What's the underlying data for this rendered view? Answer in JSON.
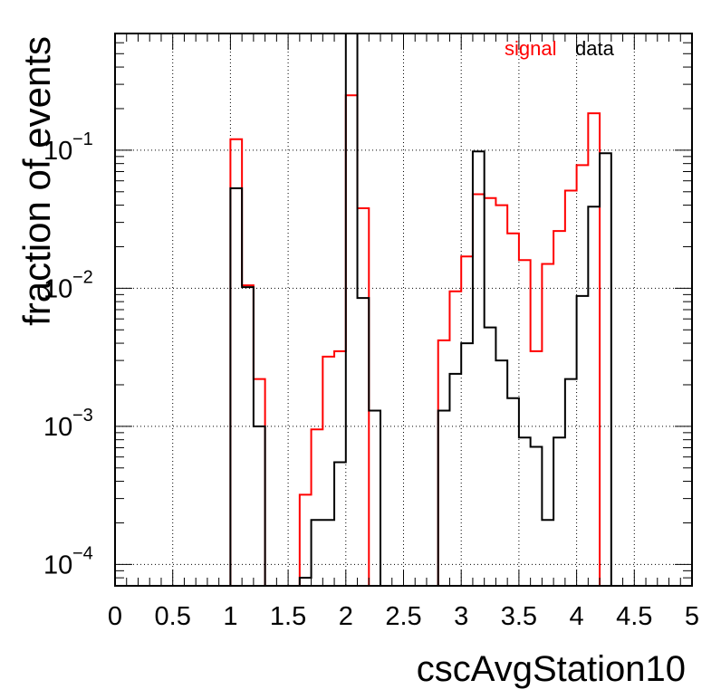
{
  "chart_data": {
    "type": "histogram",
    "xlabel": "cscAvgStation10",
    "ylabel": "fraction of events",
    "xlim": [
      0,
      5
    ],
    "ylim": [
      7e-05,
      0.7
    ],
    "yscale": "log",
    "grid": true,
    "bin_width": 0.1,
    "x_ticks": [
      0,
      0.5,
      1,
      1.5,
      2,
      2.5,
      3,
      3.5,
      4,
      4.5,
      5
    ],
    "x_tick_labels": [
      "0",
      "0.5",
      "1",
      "1.5",
      "2",
      "2.5",
      "3",
      "3.5",
      "4",
      "4.5",
      "5"
    ],
    "y_ticks": [
      0.0001,
      0.001,
      0.01,
      0.1
    ],
    "y_tick_labels": [
      {
        "base": "10",
        "exp": "−4"
      },
      {
        "base": "10",
        "exp": "−3"
      },
      {
        "base": "10",
        "exp": "−2"
      },
      {
        "base": "10",
        "exp": "−1"
      }
    ],
    "legend": {
      "placement": "top-right",
      "entries": [
        "signal",
        "data"
      ]
    },
    "series": [
      {
        "name": "signal",
        "color": "#ff0000",
        "values": [
          0,
          0,
          0,
          0,
          0,
          0,
          0,
          0,
          0,
          0,
          0.12,
          0.0105,
          0.0022,
          0,
          0,
          0,
          0.00032,
          0.00095,
          0.0032,
          0.0035,
          0.25,
          0.038,
          0,
          0,
          0,
          0,
          0,
          0,
          0.0042,
          0.0095,
          0.017,
          0.048,
          0.045,
          0.04,
          0.025,
          0.016,
          0.0035,
          0.015,
          0.026,
          0.051,
          0.078,
          0.185,
          0,
          0,
          0,
          0,
          0,
          0,
          0,
          0
        ]
      },
      {
        "name": "data",
        "color": "#000000",
        "values": [
          0,
          0,
          0,
          0,
          0,
          0,
          0,
          0,
          0,
          0,
          0.053,
          0.0102,
          0.001,
          0,
          0,
          0,
          8e-05,
          0.00021,
          0.00021,
          0.00055,
          0.7,
          0.0085,
          0.0013,
          0,
          0,
          0,
          0,
          0,
          0.0013,
          0.0024,
          0.004,
          0.098,
          0.0052,
          0.003,
          0.0016,
          0.00083,
          0.00071,
          0.00021,
          0.00083,
          0.0022,
          0.0088,
          0.039,
          0.095,
          0,
          0,
          0,
          0,
          0,
          0,
          0
        ]
      }
    ]
  }
}
